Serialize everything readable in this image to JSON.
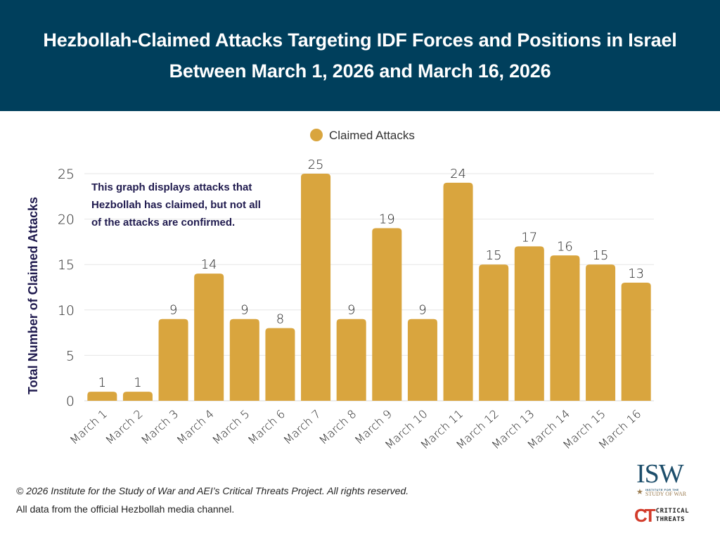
{
  "header": {
    "title_line1": "Hezbollah-Claimed Attacks Targeting IDF Forces and Positions in Israel",
    "title_line2": "Between March 1, 2026 and March 16, 2026",
    "background_color": "#003F5C"
  },
  "chart_data": {
    "type": "bar",
    "title": "Hezbollah-Claimed Attacks Targeting IDF Forces and Positions in Israel Between March 1, 2026 and March 16, 2026",
    "categories": [
      "March 1",
      "March 2",
      "March 3",
      "March 4",
      "March 5",
      "March 6",
      "March 7",
      "March 8",
      "March 9",
      "March 10",
      "March 11",
      "March 12",
      "March 13",
      "March 14",
      "March 15",
      "March 16"
    ],
    "series": [
      {
        "name": "Claimed Attacks",
        "color": "#D9A53E",
        "values": [
          1,
          1,
          9,
          14,
          9,
          8,
          25,
          9,
          19,
          9,
          24,
          15,
          17,
          16,
          15,
          13
        ]
      }
    ],
    "xlabel": "",
    "ylabel": "Total Number of Claimed Attacks",
    "ylim": [
      0,
      25
    ],
    "yticks": [
      0,
      5,
      10,
      15,
      20,
      25
    ],
    "grid": true,
    "legend": {
      "position": "top-center",
      "entries": [
        "Claimed Attacks"
      ]
    },
    "data_labels": true,
    "annotation": {
      "lines": [
        "This graph displays attacks that",
        "Hezbollah has claimed, but not all",
        "of the attacks are confirmed."
      ],
      "color": "#1F1A4E",
      "position": "top-left"
    }
  },
  "footer": {
    "copyright": "© 2026 Institute for the Study of War and AEI’s Critical Threats Project. All rights reserved.",
    "source": "All data from the official Hezbollah media channel."
  },
  "logos": {
    "isw": {
      "letters": "ISW",
      "small_text": "INSTITUTE FOR THE",
      "big_text": "STUDY OF WAR"
    },
    "ct": {
      "mark": "CT",
      "line1": "CRITICAL",
      "line2": "THREATS"
    }
  }
}
